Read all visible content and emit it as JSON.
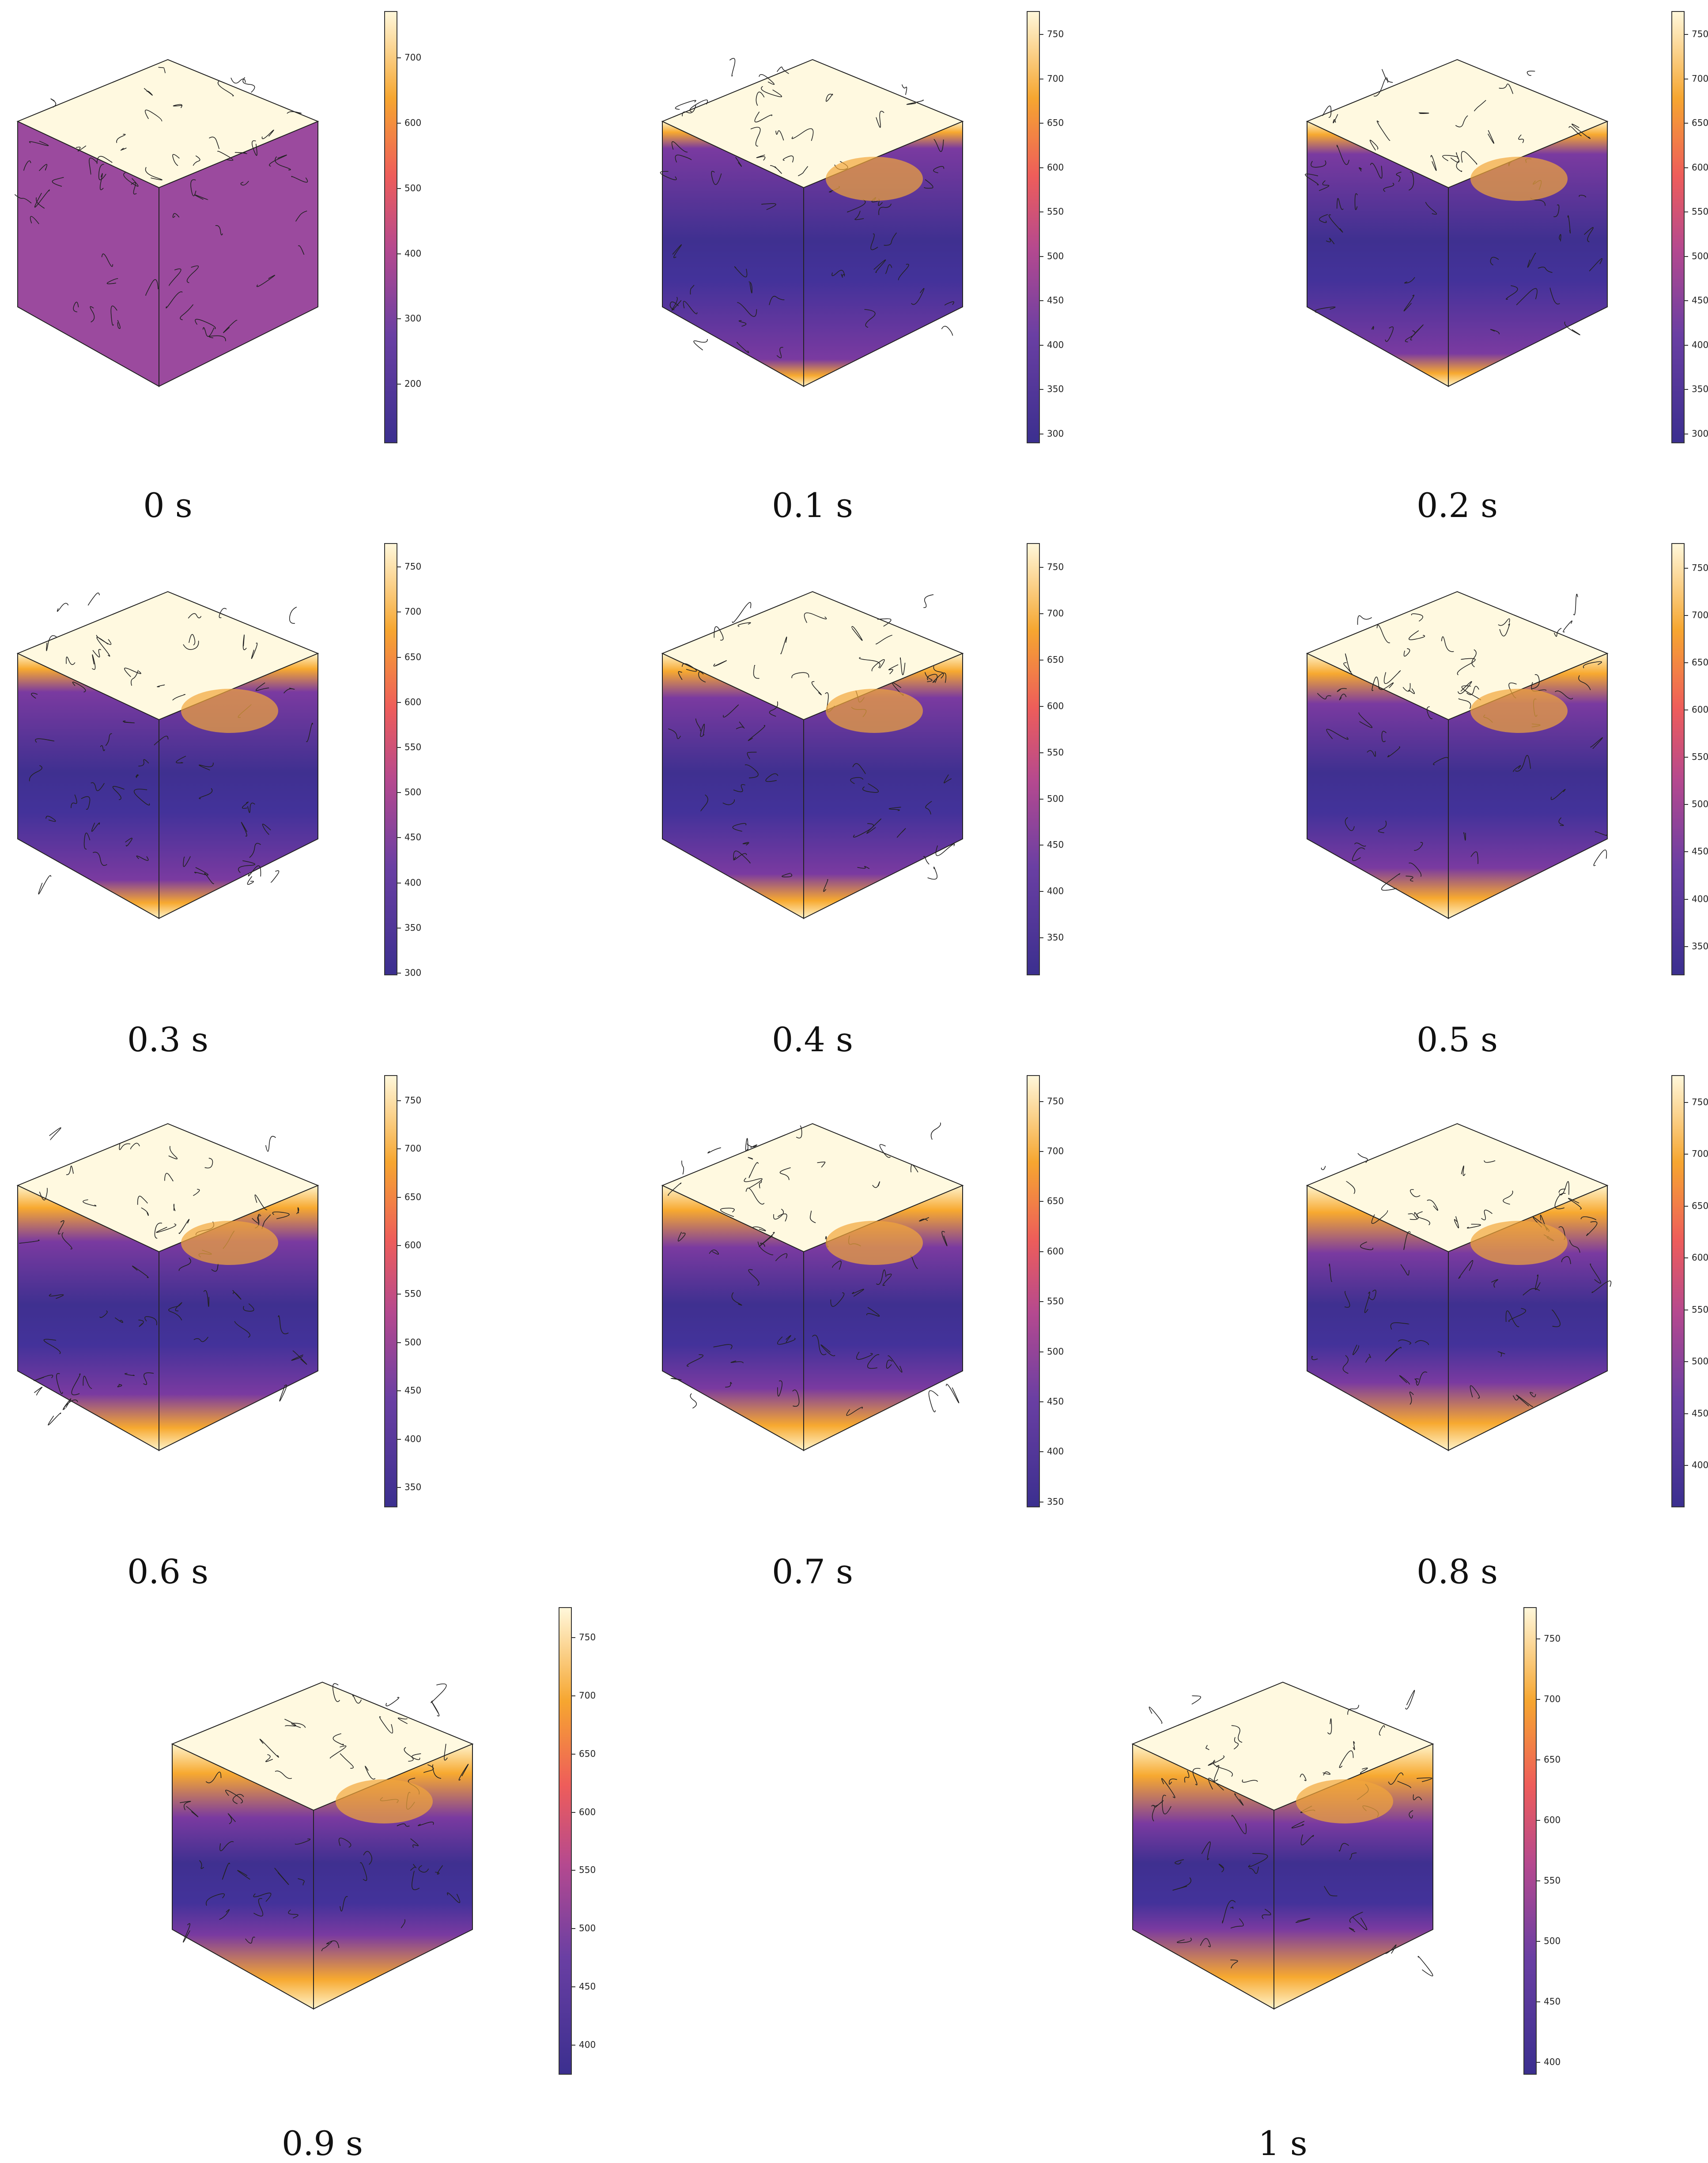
{
  "colors": {
    "cool": "#3b2f8f",
    "mid": "#b5498f",
    "warm": "#f6a630",
    "hot": "#fff7da"
  },
  "panels": [
    {
      "label": "0 s",
      "ticks": [
        "700",
        "600",
        "500",
        "400",
        "300",
        "200"
      ],
      "min": 110,
      "max": 770
    },
    {
      "label": "0.1 s",
      "ticks": [
        "750",
        "700",
        "650",
        "600",
        "550",
        "500",
        "450",
        "400",
        "350",
        "300"
      ],
      "min": 290,
      "max": 775
    },
    {
      "label": "0.2 s",
      "ticks": [
        "750",
        "700",
        "650",
        "600",
        "550",
        "500",
        "450",
        "400",
        "350",
        "300"
      ],
      "min": 290,
      "max": 775
    },
    {
      "label": "0.3 s",
      "ticks": [
        "750",
        "700",
        "650",
        "600",
        "550",
        "500",
        "450",
        "400",
        "350",
        "300"
      ],
      "min": 298,
      "max": 775
    },
    {
      "label": "0.4 s",
      "ticks": [
        "750",
        "700",
        "650",
        "600",
        "550",
        "500",
        "450",
        "400",
        "350"
      ],
      "min": 310,
      "max": 775
    },
    {
      "label": "0.5 s",
      "ticks": [
        "750",
        "700",
        "650",
        "600",
        "550",
        "500",
        "450",
        "400",
        "350"
      ],
      "min": 320,
      "max": 775
    },
    {
      "label": "0.6 s",
      "ticks": [
        "750",
        "700",
        "650",
        "600",
        "550",
        "500",
        "450",
        "400",
        "350"
      ],
      "min": 330,
      "max": 775
    },
    {
      "label": "0.7 s",
      "ticks": [
        "750",
        "700",
        "650",
        "600",
        "550",
        "500",
        "450",
        "400",
        "350"
      ],
      "min": 345,
      "max": 775
    },
    {
      "label": "0.8 s",
      "ticks": [
        "750",
        "700",
        "650",
        "600",
        "550",
        "500",
        "450",
        "400"
      ],
      "min": 360,
      "max": 775
    },
    {
      "label": "0.9 s",
      "ticks": [
        "750",
        "700",
        "650",
        "600",
        "550",
        "500",
        "450",
        "400"
      ],
      "min": 375,
      "max": 775
    },
    {
      "label": "1 s",
      "ticks": [
        "750",
        "700",
        "650",
        "600",
        "550",
        "500",
        "450",
        "400"
      ],
      "min": 390,
      "max": 775
    }
  ]
}
